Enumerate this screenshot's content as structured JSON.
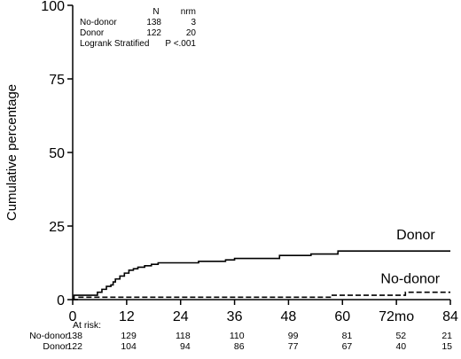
{
  "chart_data": {
    "type": "line",
    "title": "",
    "xlabel": "",
    "ylabel": "Cumulative percentage",
    "xlim": [
      0,
      84
    ],
    "ylim": [
      0,
      100
    ],
    "x_ticks": [
      {
        "value": 0,
        "label": "0"
      },
      {
        "value": 12,
        "label": "12"
      },
      {
        "value": 24,
        "label": "24"
      },
      {
        "value": 36,
        "label": "36"
      },
      {
        "value": 48,
        "label": "48"
      },
      {
        "value": 60,
        "label": "60"
      },
      {
        "value": 72,
        "label": "72mo"
      },
      {
        "value": 84,
        "label": "84"
      }
    ],
    "y_ticks": [
      0,
      25,
      50,
      75,
      100
    ],
    "grid": false,
    "series": [
      {
        "name": "Donor",
        "style": "solid",
        "points": [
          [
            0,
            0
          ],
          [
            0.3,
            1.5
          ],
          [
            5,
            1.5
          ],
          [
            5.5,
            2.5
          ],
          [
            6.5,
            3.5
          ],
          [
            7.5,
            4.5
          ],
          [
            8.5,
            5
          ],
          [
            9,
            6
          ],
          [
            9.5,
            7
          ],
          [
            10.5,
            8
          ],
          [
            11.5,
            9
          ],
          [
            12.5,
            10
          ],
          [
            13.5,
            10.5
          ],
          [
            14.5,
            11
          ],
          [
            16,
            11.5
          ],
          [
            17.5,
            12
          ],
          [
            19,
            12.5
          ],
          [
            27,
            12.5
          ],
          [
            28,
            13
          ],
          [
            33,
            13
          ],
          [
            34,
            13.5
          ],
          [
            36,
            14
          ],
          [
            45,
            14
          ],
          [
            46,
            15
          ],
          [
            52,
            15
          ],
          [
            53,
            15.5
          ],
          [
            58,
            15.5
          ],
          [
            59,
            16.5
          ],
          [
            84,
            16.5
          ]
        ],
        "label": {
          "text": "Donor",
          "x": 72,
          "y": 20.5
        }
      },
      {
        "name": "No-donor",
        "style": "dashed",
        "points": [
          [
            0,
            0
          ],
          [
            1,
            0.8
          ],
          [
            56.5,
            0.8
          ],
          [
            57.5,
            1.5
          ],
          [
            73,
            1.5
          ],
          [
            74,
            2.5
          ],
          [
            84,
            2.5
          ]
        ],
        "label": {
          "text": "No-donor",
          "x": 68.5,
          "y": 5.5
        }
      }
    ],
    "legend_table": {
      "header": [
        "",
        "N",
        "nrm"
      ],
      "rows": [
        [
          "No-donor",
          "138",
          "3"
        ],
        [
          "Donor",
          "122",
          "20"
        ]
      ],
      "footer": [
        "Logrank Stratified",
        "P <.001"
      ]
    },
    "at_risk": {
      "title": "At risk:",
      "times": [
        0,
        12,
        24,
        36,
        48,
        60,
        72,
        84
      ],
      "rows": [
        {
          "name": "No-donor",
          "values": [
            "138",
            "129",
            "118",
            "110",
            "99",
            "81",
            "52",
            "21"
          ]
        },
        {
          "name": "Donor",
          "values": [
            "122",
            "104",
            "94",
            "86",
            "77",
            "67",
            "40",
            "15"
          ]
        }
      ]
    }
  }
}
